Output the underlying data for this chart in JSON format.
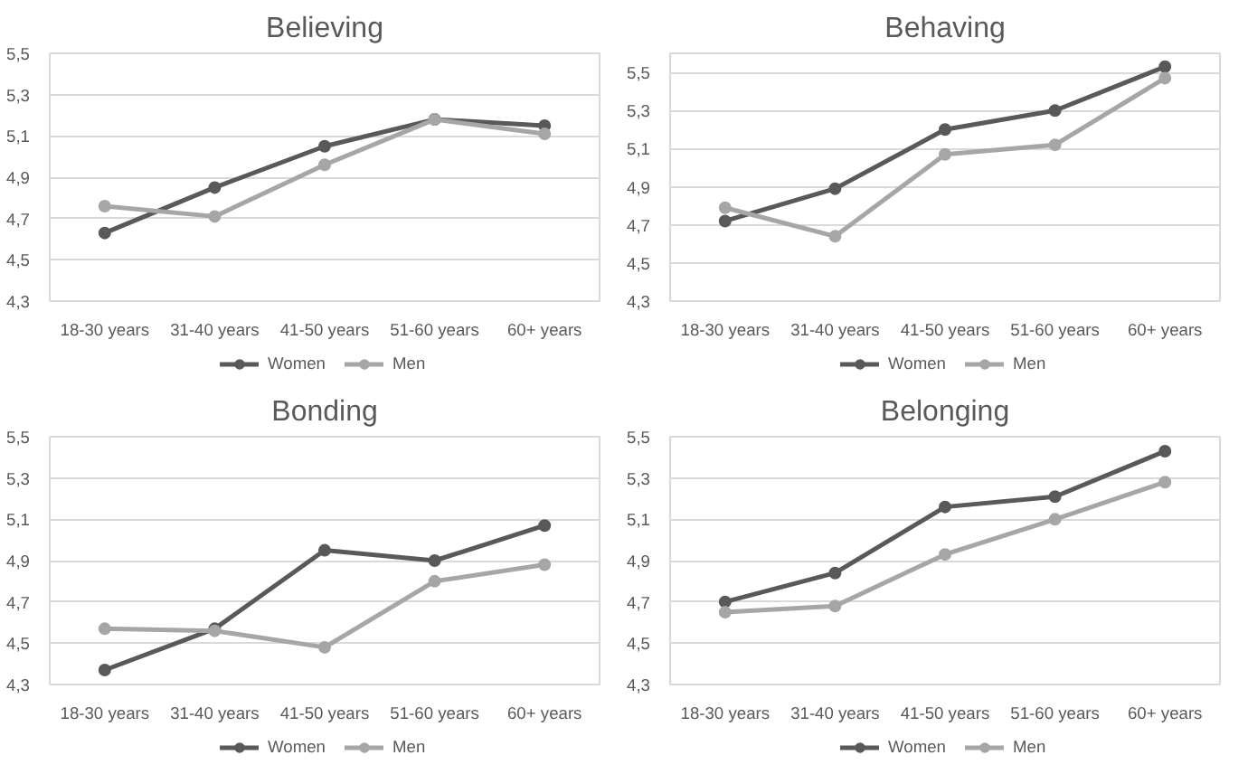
{
  "chart_data": [
    {
      "type": "line",
      "title": "Believing",
      "categories": [
        "18-30 years",
        "31-40 years",
        "41-50 years",
        "51-60 years",
        "60+ years"
      ],
      "series": [
        {
          "name": "Women",
          "color": "#595959",
          "values": [
            4.63,
            4.85,
            5.05,
            5.18,
            5.15
          ]
        },
        {
          "name": "Men",
          "color": "#a6a6a6",
          "values": [
            4.76,
            4.71,
            4.96,
            5.18,
            5.11
          ]
        }
      ],
      "ylim": [
        4.3,
        5.5
      ],
      "yticks": [
        {
          "value": 4.3,
          "label": "4,3"
        },
        {
          "value": 4.5,
          "label": "4,5"
        },
        {
          "value": 4.7,
          "label": "4,7"
        },
        {
          "value": 4.9,
          "label": "4,9"
        },
        {
          "value": 5.1,
          "label": "5,1"
        },
        {
          "value": 5.3,
          "label": "5,3"
        },
        {
          "value": 5.5,
          "label": "5,5"
        }
      ],
      "grid": "y",
      "legend": "bottom",
      "marker": "circle",
      "line_style": "solid"
    },
    {
      "type": "line",
      "title": "Behaving",
      "categories": [
        "18-30 years",
        "31-40 years",
        "41-50 years",
        "51-60 years",
        "60+ years"
      ],
      "series": [
        {
          "name": "Women",
          "color": "#595959",
          "values": [
            4.72,
            4.89,
            5.2,
            5.3,
            5.53
          ]
        },
        {
          "name": "Men",
          "color": "#a6a6a6",
          "values": [
            4.79,
            4.64,
            5.07,
            5.12,
            5.47
          ]
        }
      ],
      "ylim": [
        4.3,
        5.6
      ],
      "yticks": [
        {
          "value": 4.3,
          "label": "4,3"
        },
        {
          "value": 4.5,
          "label": "4,5"
        },
        {
          "value": 4.7,
          "label": "4,7"
        },
        {
          "value": 4.9,
          "label": "4,9"
        },
        {
          "value": 5.1,
          "label": "5,1"
        },
        {
          "value": 5.3,
          "label": "5,3"
        },
        {
          "value": 5.5,
          "label": "5,5"
        }
      ],
      "grid": "y",
      "legend": "bottom",
      "marker": "circle",
      "line_style": "solid"
    },
    {
      "type": "line",
      "title": "Bonding",
      "categories": [
        "18-30 years",
        "31-40 years",
        "41-50 years",
        "51-60 years",
        "60+ years"
      ],
      "series": [
        {
          "name": "Women",
          "color": "#595959",
          "values": [
            4.37,
            4.57,
            4.95,
            4.9,
            5.07
          ]
        },
        {
          "name": "Men",
          "color": "#a6a6a6",
          "values": [
            4.57,
            4.56,
            4.48,
            4.8,
            4.88
          ]
        }
      ],
      "ylim": [
        4.3,
        5.5
      ],
      "yticks": [
        {
          "value": 4.3,
          "label": "4,3"
        },
        {
          "value": 4.5,
          "label": "4,5"
        },
        {
          "value": 4.7,
          "label": "4,7"
        },
        {
          "value": 4.9,
          "label": "4,9"
        },
        {
          "value": 5.1,
          "label": "5,1"
        },
        {
          "value": 5.3,
          "label": "5,3"
        },
        {
          "value": 5.5,
          "label": "5,5"
        }
      ],
      "grid": "y",
      "legend": "bottom",
      "marker": "circle",
      "line_style": "solid"
    },
    {
      "type": "line",
      "title": "Belonging",
      "categories": [
        "18-30 years",
        "31-40 years",
        "41-50 years",
        "51-60 years",
        "60+ years"
      ],
      "series": [
        {
          "name": "Women",
          "color": "#595959",
          "values": [
            4.7,
            4.84,
            5.16,
            5.21,
            5.43
          ]
        },
        {
          "name": "Men",
          "color": "#a6a6a6",
          "values": [
            4.65,
            4.68,
            4.93,
            5.1,
            5.28
          ]
        }
      ],
      "ylim": [
        4.3,
        5.5
      ],
      "yticks": [
        {
          "value": 4.3,
          "label": "4,3"
        },
        {
          "value": 4.5,
          "label": "4,5"
        },
        {
          "value": 4.7,
          "label": "4,7"
        },
        {
          "value": 4.9,
          "label": "4,9"
        },
        {
          "value": 5.1,
          "label": "5,1"
        },
        {
          "value": 5.3,
          "label": "5,3"
        },
        {
          "value": 5.5,
          "label": "5,5"
        }
      ],
      "grid": "y",
      "legend": "bottom",
      "marker": "circle",
      "line_style": "solid"
    }
  ]
}
